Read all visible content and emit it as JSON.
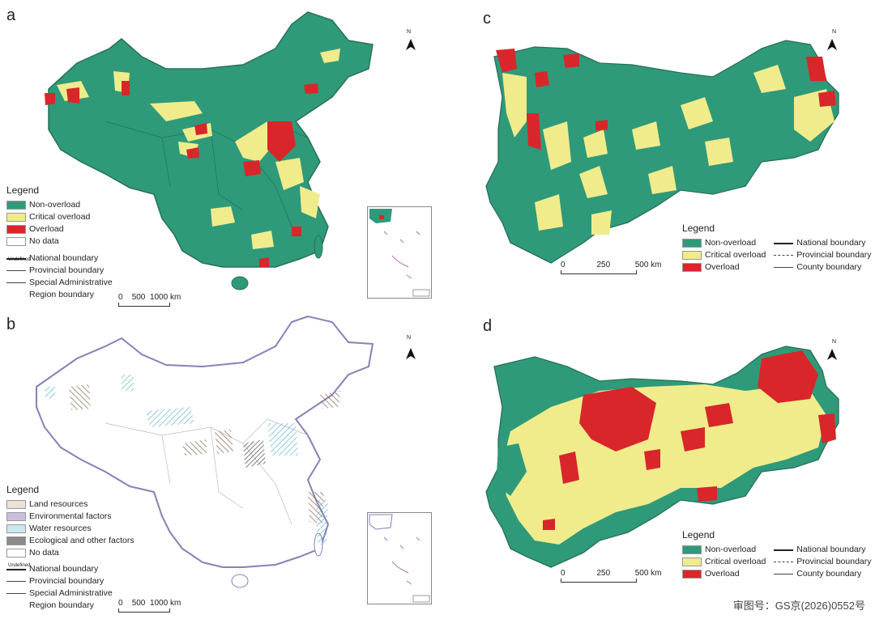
{
  "panels": {
    "a": {
      "label": "a"
    },
    "b": {
      "label": "b"
    },
    "c": {
      "label": "c"
    },
    "d": {
      "label": "d"
    }
  },
  "north_label": "N",
  "inset_boundary_text": "Undefined",
  "legend_a": {
    "title": "Legend",
    "items": [
      "Non-overload",
      "Critical overload",
      "Overload",
      "No data"
    ],
    "lines": [
      "National boundary",
      "Provincial boundary",
      "Special Administrative",
      "Region boundary"
    ]
  },
  "legend_b": {
    "title": "Legend",
    "items": [
      "Land resources",
      "Environmental factors",
      "Water resources",
      "Ecological and other factors",
      "No data"
    ],
    "lines": [
      "National boundary",
      "Provincial boundary",
      "Special Administrative",
      "Region boundary"
    ]
  },
  "legend_c": {
    "title": "Legend",
    "items": [
      "Non-overload",
      "Critical overload",
      "Overload"
    ],
    "lines": [
      "National boundary",
      "Provincial boundary",
      "County boundary"
    ]
  },
  "legend_d": {
    "title": "Legend",
    "items": [
      "Non-overload",
      "Critical overload",
      "Overload"
    ],
    "lines": [
      "National boundary",
      "Provincial boundary",
      "County boundary"
    ]
  },
  "scale_ab": {
    "t0": "0",
    "t1": "500",
    "t2": "1000 km"
  },
  "scale_cd": {
    "t0": "0",
    "t1": "250",
    "t2": "500 km"
  },
  "colors": {
    "non_overload": "#2e9a7a",
    "critical": "#f0ec8c",
    "overload": "#d9262a",
    "no_data": "#ffffff",
    "land": "#e8e2d8",
    "env": "#cbbfe0",
    "water": "#c8e8f0",
    "eco": "#8a8a8a"
  },
  "footer": "审图号：GS京(2026)0552号"
}
